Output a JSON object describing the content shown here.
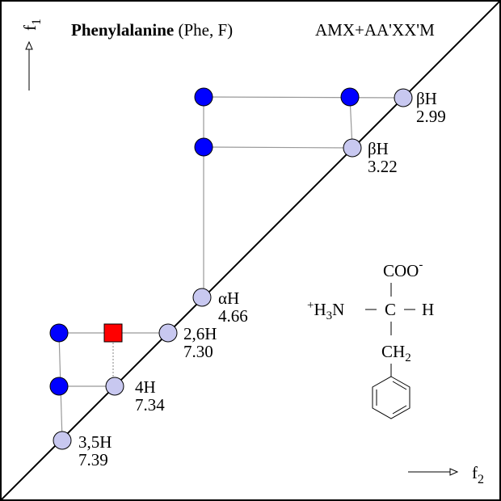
{
  "header": {
    "title": "Phenylalanine",
    "subtitle": "(Phe, F)",
    "spin_system": "AMX+AA'XX'M"
  },
  "axes": {
    "f1": {
      "letter": "f",
      "index": "1"
    },
    "f2": {
      "letter": "f",
      "index": "2"
    }
  },
  "peaks": [
    {
      "label": "βH",
      "shift": "2.99"
    },
    {
      "label": "βH",
      "shift": "3.22"
    },
    {
      "label": "αH",
      "shift": "4.66"
    },
    {
      "label": "2,6H",
      "shift": "7.30"
    },
    {
      "label": "4H",
      "shift": "7.34"
    },
    {
      "label": "3,5H",
      "shift": "7.39"
    }
  ],
  "molecule": {
    "carboxyl": "COO",
    "carboxyl_charge": "-",
    "amine_charge": "+",
    "amine_h": "H",
    "amine_count": "3",
    "amine_n": "N",
    "alpha_c": "C",
    "alpha_h": "H",
    "methylene": "CH",
    "methylene_count": "2"
  }
}
